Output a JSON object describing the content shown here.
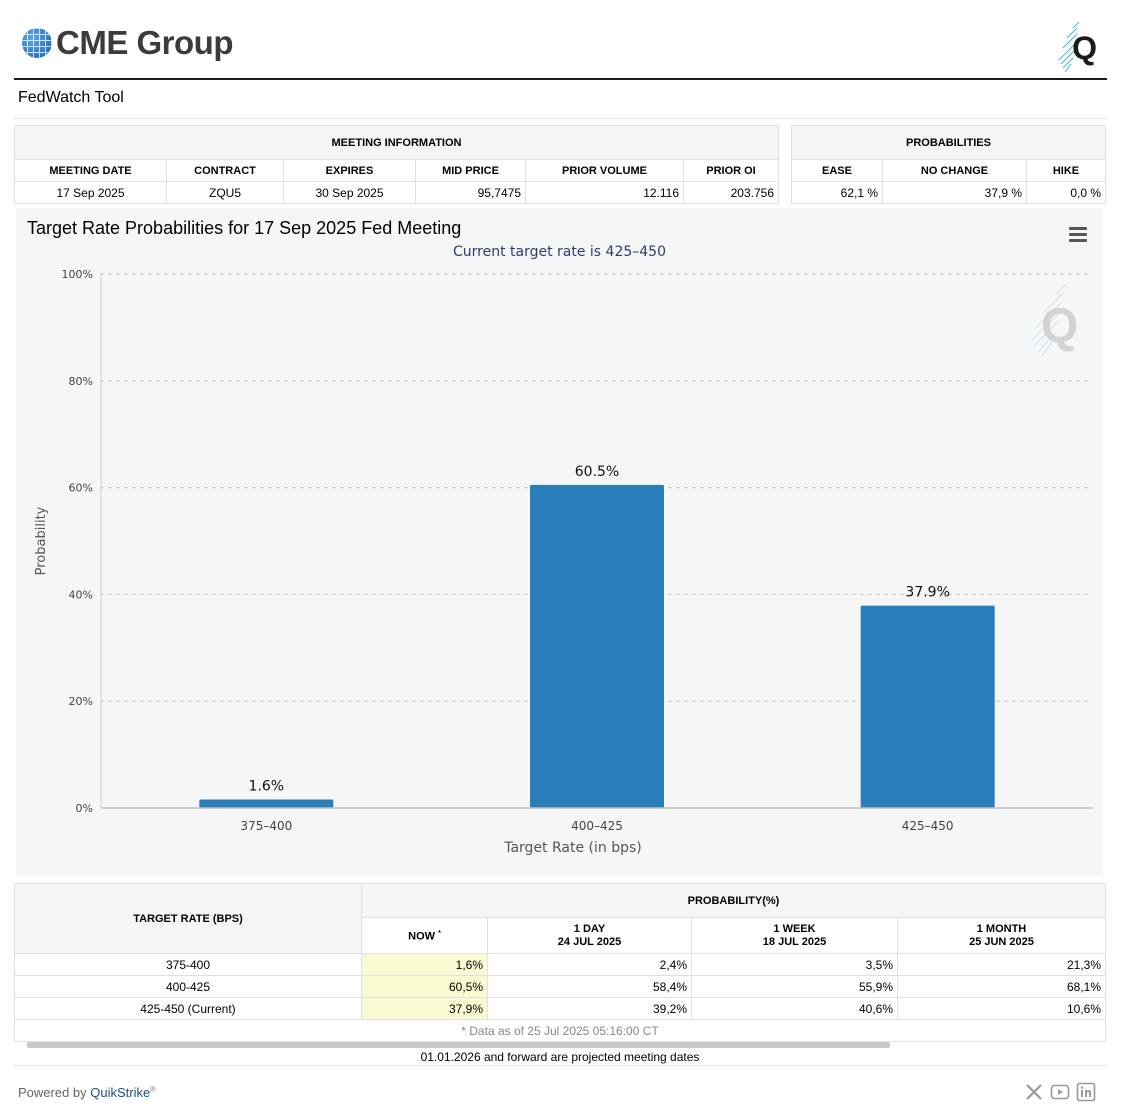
{
  "header": {
    "brand": "CME Group",
    "tool_title": "FedWatch Tool"
  },
  "meeting_info": {
    "group_label": "MEETING INFORMATION",
    "columns": [
      "MEETING DATE",
      "CONTRACT",
      "EXPIRES",
      "MID PRICE",
      "PRIOR VOLUME",
      "PRIOR OI"
    ],
    "values": [
      "17 Sep 2025",
      "ZQU5",
      "30 Sep 2025",
      "95,7475",
      "12.116",
      "203.756"
    ]
  },
  "probabilities": {
    "group_label": "PROBABILITIES",
    "columns": [
      "EASE",
      "NO CHANGE",
      "HIKE"
    ],
    "values": [
      "62,1 %",
      "37,9 %",
      "0,0 %"
    ]
  },
  "chart_data": {
    "type": "bar",
    "title": "Target Rate Probabilities for 17 Sep 2025 Fed Meeting",
    "subtitle": "Current target rate is 425–450",
    "xlabel": "Target Rate (in bps)",
    "ylabel": "Probability",
    "categories": [
      "375–400",
      "400–425",
      "425–450"
    ],
    "values": [
      1.6,
      60.5,
      37.9
    ],
    "data_labels": [
      "1.6%",
      "60.5%",
      "37.9%"
    ],
    "ylim": [
      0,
      100
    ],
    "yticks": [
      0,
      20,
      40,
      60,
      80,
      100
    ],
    "ytick_labels": [
      "0%",
      "20%",
      "40%",
      "60%",
      "80%",
      "100%"
    ],
    "grid": true,
    "bar_color": "#2a7fba"
  },
  "history": {
    "rate_header": "TARGET RATE (BPS)",
    "prob_header": "PROBABILITY(%)",
    "now_label": "NOW",
    "now_mark": "*",
    "periods": [
      {
        "label": "1 DAY",
        "date": "24 JUL 2025"
      },
      {
        "label": "1 WEEK",
        "date": "18 JUL 2025"
      },
      {
        "label": "1 MONTH",
        "date": "25 JUN 2025"
      }
    ],
    "rows": [
      {
        "rate": "375-400",
        "now": "1,6%",
        "d1": "2,4%",
        "w1": "3,5%",
        "m1": "21,3%"
      },
      {
        "rate": "400-425",
        "now": "60,5%",
        "d1": "58,4%",
        "w1": "55,9%",
        "m1": "68,1%"
      },
      {
        "rate": "425-450 (Current)",
        "now": "37,9%",
        "d1": "39,2%",
        "w1": "40,6%",
        "m1": "10,6%"
      }
    ],
    "footnote": "* Data as of 25 Jul 2025 05:16:00 CT"
  },
  "projection_note": "01.01.2026 and forward are projected meeting dates",
  "footer": {
    "powered_by": "Powered by ",
    "provider": "QuikStrike",
    "reg": "®"
  },
  "social_icons": [
    "x-icon",
    "youtube-icon",
    "linkedin-icon"
  ]
}
